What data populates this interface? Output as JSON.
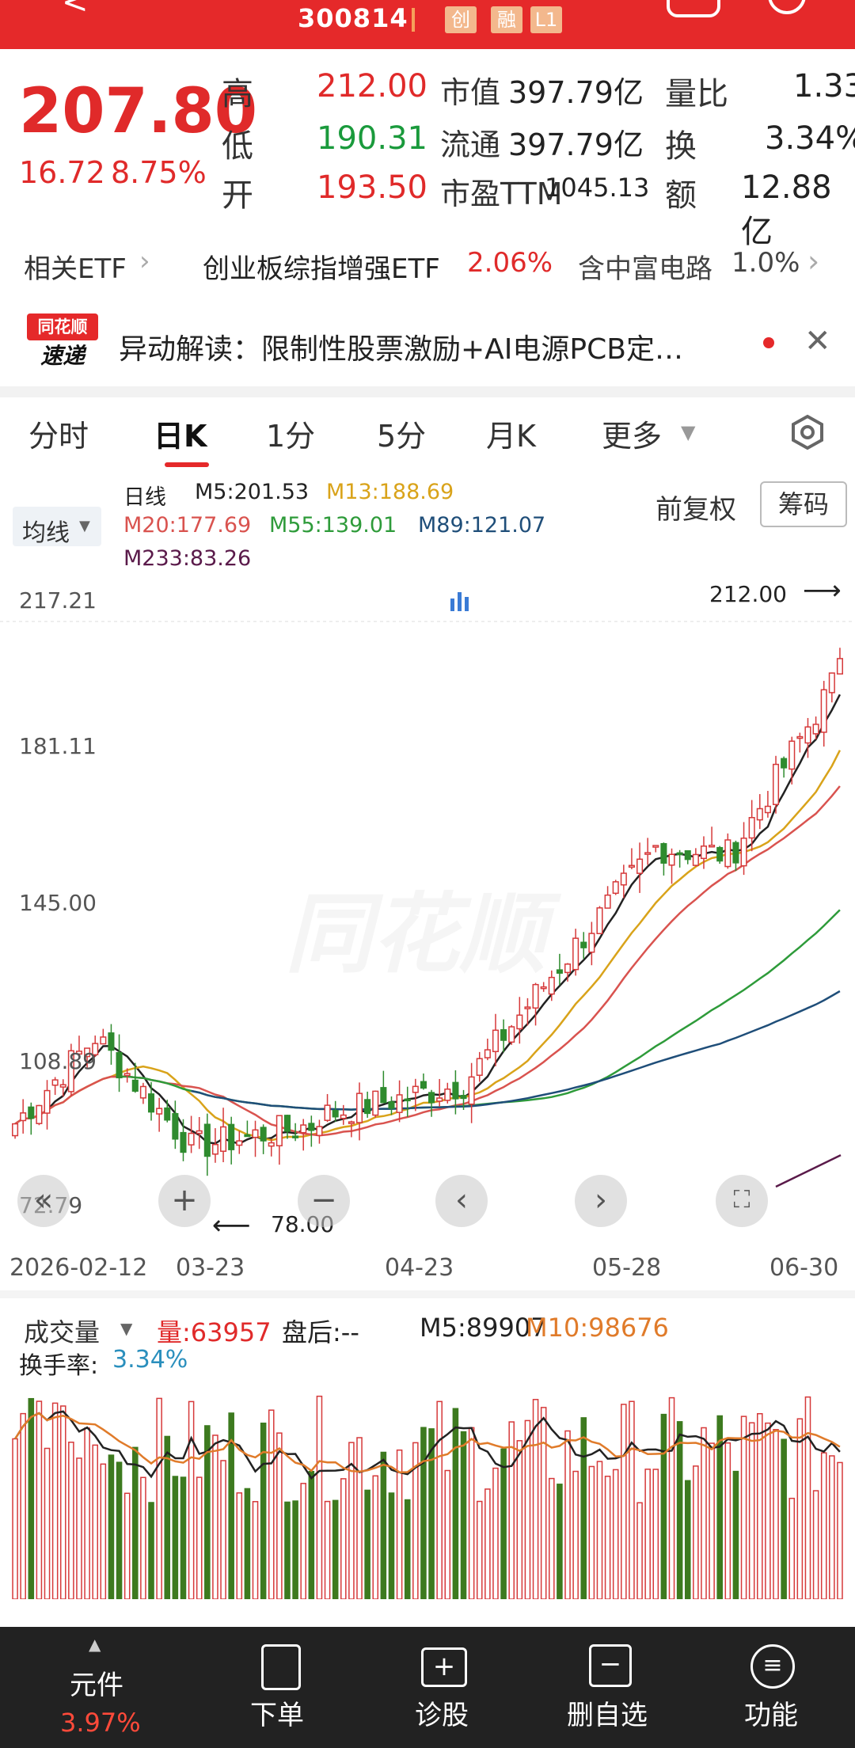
{
  "header": {
    "code": "300814",
    "tags": [
      "创",
      "融",
      "L1"
    ]
  },
  "quote": {
    "price": "207.80",
    "change": "16.72",
    "change_pct": "8.75%",
    "rows": [
      {
        "label": "高",
        "value": "212.00",
        "label2": "市值",
        "value2": "397.79亿",
        "label3": "量比",
        "value3": "1.33"
      },
      {
        "label": "低",
        "value": "190.31",
        "label2": "流通",
        "value2": "397.79亿",
        "label3": "换",
        "value3": "3.34%"
      },
      {
        "label": "开",
        "value": "193.50",
        "label2": "市盈TTM",
        "value2": "1045.13",
        "label3": "额",
        "value3": "12.88亿"
      }
    ]
  },
  "etf": {
    "label": "相关ETF",
    "name": "创业板综指增强ETF",
    "pct": "2.06%",
    "holding": "含中富电路",
    "holding_pct": "1.0%"
  },
  "news": {
    "logo_top": "同花顺",
    "logo_bottom": "速递",
    "text": "异动解读：限制性股票激励+AI电源PCB定…"
  },
  "tabs": [
    "分时",
    "日K",
    "1分",
    "5分",
    "月K",
    "更多"
  ],
  "active_tab": 1,
  "chart": {
    "ma_select": "均线",
    "period_label": "日线",
    "ma": [
      {
        "label": "M5:201.53",
        "color": "#222222"
      },
      {
        "label": "M13:188.69",
        "color": "#d9a31a"
      },
      {
        "label": "M20:177.69",
        "color": "#d9534f"
      },
      {
        "label": "M55:139.01",
        "color": "#2e9b3a"
      },
      {
        "label": "M89:121.07",
        "color": "#1f4e79"
      },
      {
        "label": "M233:83.26",
        "color": "#5a1a4a"
      }
    ],
    "adjust": "前复权",
    "chip_button": "筹码",
    "y_ticks": [
      "217.21",
      "181.11",
      "145.00",
      "108.89",
      "72.79"
    ],
    "high_marker": "212.00",
    "low_marker": "78.00",
    "x_ticks": [
      "2026-02-12",
      "03-23",
      "04-23",
      "05-28",
      "06-30"
    ],
    "watermark": "同花顺"
  },
  "volume": {
    "label": "成交量",
    "vol": "量:63957",
    "after": "盘后:--",
    "m5": "M5:89907",
    "m10": "M10:98676",
    "turnover_label": "换手率:",
    "turnover": "3.34%"
  },
  "bottom": {
    "stock_name": "元件",
    "stock_pct": "3.97%",
    "items": [
      "下单",
      "诊股",
      "删自选",
      "功能"
    ]
  },
  "chart_data": {
    "type": "candlestick",
    "y_range": [
      72.79,
      217.21
    ],
    "x_ticks": [
      "2026-02-12",
      "03-23",
      "04-23",
      "05-28",
      "06-30"
    ],
    "last_close": 207.8,
    "period_high": 212.0,
    "period_low": 78.0,
    "ma_values": {
      "M5": 201.53,
      "M13": 188.69,
      "M20": 177.69,
      "M55": 139.01,
      "M89": 121.07,
      "M233": 83.26
    },
    "volume_last": 63957,
    "volume_m5": 89907,
    "volume_m10": 98676
  }
}
